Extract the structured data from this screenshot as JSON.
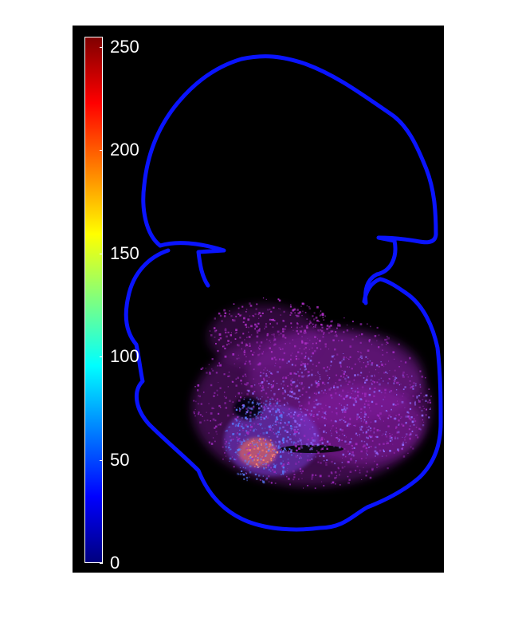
{
  "colorbar": {
    "colormap": "jet",
    "min": 0,
    "max": 255,
    "ticks": [
      {
        "value": 0,
        "label": "0"
      },
      {
        "value": 50,
        "label": "50"
      },
      {
        "value": 100,
        "label": "100"
      },
      {
        "value": 150,
        "label": "150"
      },
      {
        "value": 200,
        "label": "200"
      },
      {
        "value": 250,
        "label": "250"
      }
    ],
    "gradient_colors": [
      "#00007f",
      "#0000ff",
      "#007fff",
      "#00ffff",
      "#7fff7f",
      "#ffff00",
      "#ff7f00",
      "#ff0000",
      "#7f0000"
    ]
  },
  "colors": {
    "background": "#000000",
    "outline": "#0a14ff",
    "signal": "#8a1aa8",
    "signal_dense": "#7a3fe0",
    "signal_hot": "#ff7a5a"
  }
}
